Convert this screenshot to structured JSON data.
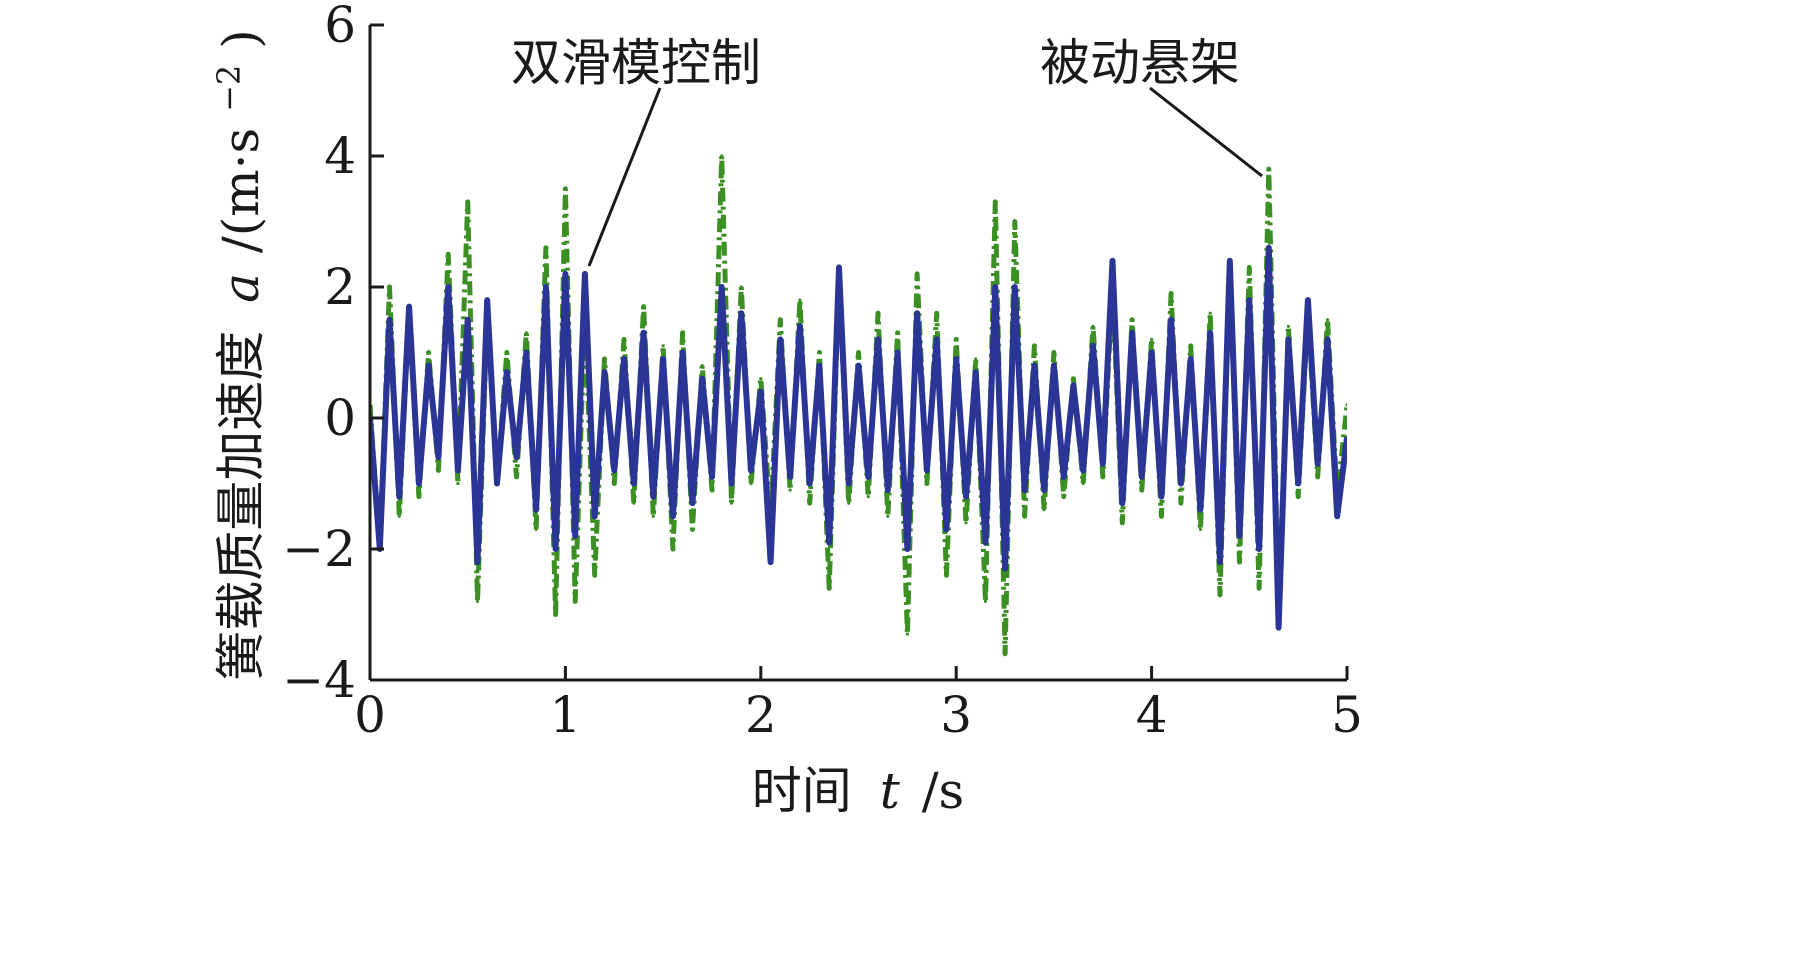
{
  "chart_data": {
    "type": "line",
    "xlabel_prefix": "时间",
    "xlabel_var": "t",
    "xlabel_unit": "/s",
    "ylabel_prefix": "簧载质量加速度",
    "ylabel_var": "a",
    "ylabel_unit": "/(m·s",
    "ylabel_exp": "−2",
    "ylabel_close": ")",
    "xlim": [
      0,
      5
    ],
    "ylim": [
      -4,
      6
    ],
    "xticks": [
      0,
      1,
      2,
      3,
      4,
      5
    ],
    "xtick_labels": [
      "0",
      "1",
      "2",
      "3",
      "4",
      "5"
    ],
    "yticks": [
      -4,
      -2,
      0,
      2,
      4,
      6
    ],
    "ytick_labels": [
      "−4",
      "−2",
      "0",
      "2",
      "4",
      "6"
    ],
    "grid": false,
    "series": [
      {
        "name": "被动悬架",
        "color": "#3b8f23",
        "style": "dash-dot",
        "x": [
          0.0,
          0.05,
          0.1,
          0.15,
          0.2,
          0.25,
          0.3,
          0.35,
          0.4,
          0.45,
          0.5,
          0.55,
          0.6,
          0.65,
          0.7,
          0.75,
          0.8,
          0.85,
          0.9,
          0.95,
          1.0,
          1.05,
          1.1,
          1.15,
          1.2,
          1.25,
          1.3,
          1.35,
          1.4,
          1.45,
          1.5,
          1.55,
          1.6,
          1.65,
          1.7,
          1.75,
          1.8,
          1.85,
          1.9,
          1.95,
          2.0,
          2.05,
          2.1,
          2.15,
          2.2,
          2.25,
          2.3,
          2.35,
          2.4,
          2.45,
          2.5,
          2.55,
          2.6,
          2.65,
          2.7,
          2.75,
          2.8,
          2.85,
          2.9,
          2.95,
          3.0,
          3.05,
          3.1,
          3.15,
          3.2,
          3.25,
          3.3,
          3.35,
          3.4,
          3.45,
          3.5,
          3.55,
          3.6,
          3.65,
          3.7,
          3.75,
          3.8,
          3.85,
          3.9,
          3.95,
          4.0,
          4.05,
          4.1,
          4.15,
          4.2,
          4.25,
          4.3,
          4.35,
          4.4,
          4.45,
          4.5,
          4.55,
          4.6,
          4.65,
          4.7,
          4.75,
          4.8,
          4.85,
          4.9,
          4.95,
          5.0
        ],
        "y": [
          0.2,
          -2.0,
          2.0,
          -1.5,
          1.7,
          -1.2,
          1.0,
          -0.8,
          2.5,
          -1.0,
          3.3,
          -2.8,
          1.6,
          -1.0,
          1.0,
          -0.9,
          1.3,
          -1.7,
          2.6,
          -3.0,
          3.5,
          -2.8,
          1.6,
          -2.4,
          0.9,
          -1.0,
          1.2,
          -1.3,
          1.7,
          -1.5,
          1.1,
          -2.0,
          1.3,
          -1.7,
          0.8,
          -1.1,
          4.0,
          -1.3,
          2.0,
          -1.0,
          0.6,
          -1.5,
          1.5,
          -1.1,
          1.8,
          -1.3,
          1.0,
          -2.6,
          2.2,
          -1.3,
          1.0,
          -1.2,
          1.6,
          -1.5,
          1.3,
          -3.3,
          2.2,
          -1.0,
          1.6,
          -2.4,
          1.2,
          -1.6,
          0.9,
          -2.8,
          3.3,
          -3.6,
          3.0,
          -1.5,
          1.1,
          -1.4,
          1.0,
          -1.2,
          0.6,
          -1.0,
          1.4,
          -0.9,
          2.0,
          -1.6,
          1.5,
          -1.1,
          1.2,
          -1.5,
          1.9,
          -1.3,
          1.1,
          -1.7,
          1.6,
          -2.7,
          2.3,
          -2.2,
          2.3,
          -2.6,
          3.8,
          -3.0,
          1.4,
          -1.2,
          1.6,
          -0.9,
          1.5,
          -1.2,
          0.2
        ]
      },
      {
        "name": "双滑模控制",
        "color": "#2b3595",
        "style": "solid",
        "x": [
          0.0,
          0.05,
          0.1,
          0.15,
          0.2,
          0.25,
          0.3,
          0.35,
          0.4,
          0.45,
          0.5,
          0.55,
          0.6,
          0.65,
          0.7,
          0.75,
          0.8,
          0.85,
          0.9,
          0.95,
          1.0,
          1.05,
          1.1,
          1.15,
          1.2,
          1.25,
          1.3,
          1.35,
          1.4,
          1.45,
          1.5,
          1.55,
          1.6,
          1.65,
          1.7,
          1.75,
          1.8,
          1.85,
          1.9,
          1.95,
          2.0,
          2.05,
          2.1,
          2.15,
          2.2,
          2.25,
          2.3,
          2.35,
          2.4,
          2.45,
          2.5,
          2.55,
          2.6,
          2.65,
          2.7,
          2.75,
          2.8,
          2.85,
          2.9,
          2.95,
          3.0,
          3.05,
          3.1,
          3.15,
          3.2,
          3.25,
          3.3,
          3.35,
          3.4,
          3.45,
          3.5,
          3.55,
          3.6,
          3.65,
          3.7,
          3.75,
          3.8,
          3.85,
          3.9,
          3.95,
          4.0,
          4.05,
          4.1,
          4.15,
          4.2,
          4.25,
          4.3,
          4.35,
          4.4,
          4.45,
          4.5,
          4.55,
          4.6,
          4.65,
          4.7,
          4.75,
          4.8,
          4.85,
          4.9,
          4.95,
          5.0
        ],
        "y": [
          0.0,
          -2.0,
          1.5,
          -1.2,
          1.7,
          -1.0,
          0.8,
          -0.6,
          2.0,
          -0.8,
          1.5,
          -2.2,
          1.8,
          -1.0,
          0.7,
          -0.6,
          1.0,
          -1.4,
          2.0,
          -2.0,
          2.2,
          -1.8,
          2.2,
          -1.5,
          0.7,
          -0.8,
          0.9,
          -1.0,
          1.3,
          -1.2,
          0.9,
          -1.5,
          1.0,
          -1.3,
          0.6,
          -0.9,
          2.0,
          -1.0,
          1.6,
          -0.8,
          0.4,
          -2.2,
          1.2,
          -0.9,
          1.4,
          -1.0,
          0.8,
          -1.9,
          2.3,
          -1.0,
          0.8,
          -0.9,
          1.2,
          -1.1,
          1.0,
          -2.0,
          1.6,
          -0.8,
          1.2,
          -1.7,
          0.9,
          -1.2,
          0.7,
          -1.9,
          2.0,
          -2.3,
          2.0,
          -1.1,
          0.8,
          -1.1,
          0.8,
          -0.9,
          0.5,
          -0.8,
          1.1,
          -0.7,
          2.4,
          -1.3,
          1.3,
          -0.9,
          1.0,
          -1.2,
          1.5,
          -1.0,
          0.9,
          -1.4,
          1.3,
          -2.2,
          2.4,
          -1.8,
          1.8,
          -2.0,
          2.6,
          -3.2,
          1.2,
          -1.0,
          1.8,
          -0.7,
          1.2,
          -1.5,
          -0.3
        ]
      }
    ],
    "annotations": [
      {
        "text": "双滑模控制",
        "x": 1.12,
        "y": 2.3
      },
      {
        "text": "被动悬架",
        "x": 4.58,
        "y": 3.7
      }
    ]
  }
}
